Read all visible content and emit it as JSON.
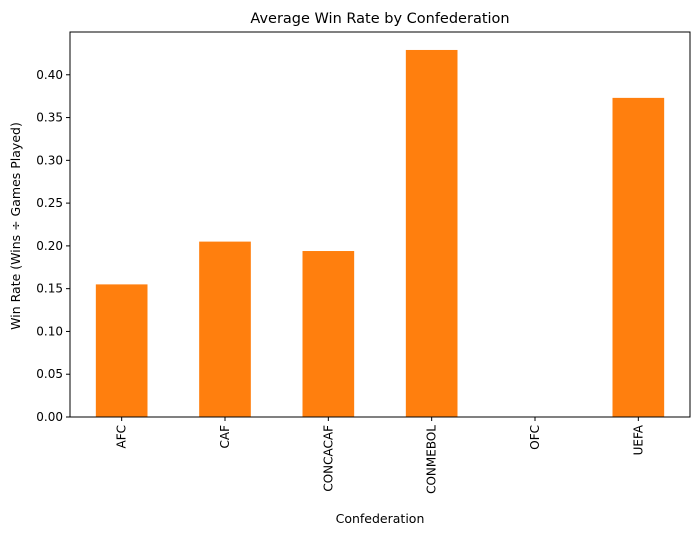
{
  "chart_data": {
    "type": "bar",
    "title": "Average Win Rate by Confederation",
    "xlabel": "Confederation",
    "ylabel": "Win Rate (Wins ÷ Games Played)",
    "categories": [
      "AFC",
      "CAF",
      "CONCACAF",
      "CONMEBOL",
      "OFC",
      "UEFA"
    ],
    "values": [
      0.155,
      0.205,
      0.194,
      0.429,
      0.0,
      0.373
    ],
    "ylim": [
      0,
      0.45
    ],
    "yticks": [
      0.0,
      0.05,
      0.1,
      0.15,
      0.2,
      0.25,
      0.3,
      0.35,
      0.4
    ],
    "ytick_labels": [
      "0.00",
      "0.05",
      "0.10",
      "0.15",
      "0.20",
      "0.25",
      "0.30",
      "0.35",
      "0.40"
    ],
    "bar_color": "#ff7f0e",
    "grid": false,
    "legend": "none"
  }
}
